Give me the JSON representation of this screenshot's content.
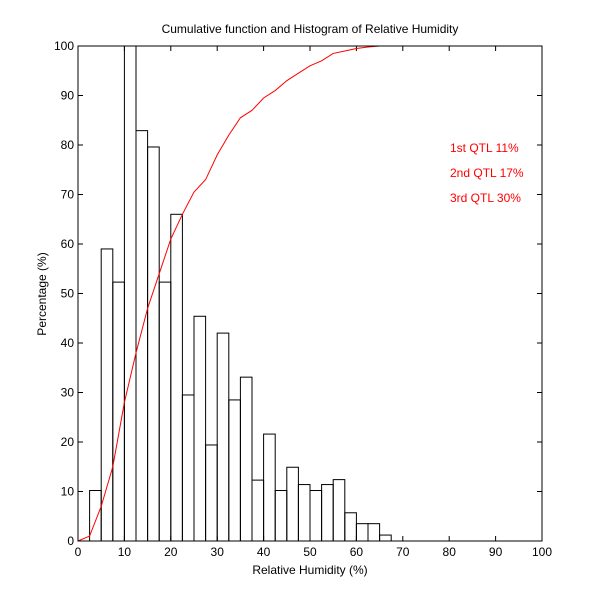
{
  "chart_data": {
    "type": "bar",
    "title": "Cumulative function and Histogram of Relative Humidity",
    "xlabel": "Relative Humidity (%)",
    "ylabel": "Percentage (%)",
    "xlim": [
      0,
      100
    ],
    "ylim": [
      0,
      100
    ],
    "xticks": [
      "0",
      "10",
      "20",
      "30",
      "40",
      "50",
      "60",
      "70",
      "80",
      "90",
      "100"
    ],
    "yticks": [
      "0",
      "10",
      "20",
      "30",
      "40",
      "50",
      "60",
      "70",
      "80",
      "90",
      "100"
    ],
    "grid": false,
    "bin_width": 2.5,
    "histogram": {
      "name": "Histogram",
      "color": "#000000",
      "bin_starts": [
        0,
        2.5,
        5,
        7.5,
        10,
        12.5,
        15,
        17.5,
        20,
        22.5,
        25,
        27.5,
        30,
        32.5,
        35,
        37.5,
        40,
        42.5,
        45,
        47.5,
        50,
        52.5,
        55,
        57.5,
        60,
        62.5,
        65,
        67.5
      ],
      "values": [
        0,
        10.2,
        59,
        52.3,
        100,
        82.9,
        79.6,
        52.3,
        66,
        29.5,
        45.4,
        19.4,
        42,
        28.5,
        33.1,
        12.3,
        21.6,
        10.2,
        14.9,
        11.4,
        10.2,
        11.4,
        12.4,
        5.7,
        3.5,
        3.5,
        1.2,
        0
      ]
    },
    "cumulative": {
      "name": "Cumulative function",
      "color": "#ff0000",
      "x": [
        0,
        2.5,
        5,
        7.5,
        10,
        12.5,
        15,
        17.5,
        20,
        22.5,
        25,
        27.5,
        30,
        32.5,
        35,
        37.5,
        40,
        42.5,
        45,
        47.5,
        50,
        52.5,
        55,
        57.5,
        60,
        62.5,
        65,
        100
      ],
      "y": [
        0,
        1,
        7,
        15,
        28,
        38,
        47,
        54,
        61,
        66,
        70.5,
        73,
        78,
        82,
        85.5,
        87,
        89.5,
        91,
        93,
        94.5,
        96,
        97,
        98.5,
        99,
        99.5,
        99.8,
        100,
        100
      ]
    },
    "annotations": [
      "1st QTL  11%",
      "2nd QTL  17%",
      "3rd QTL  30%"
    ]
  }
}
